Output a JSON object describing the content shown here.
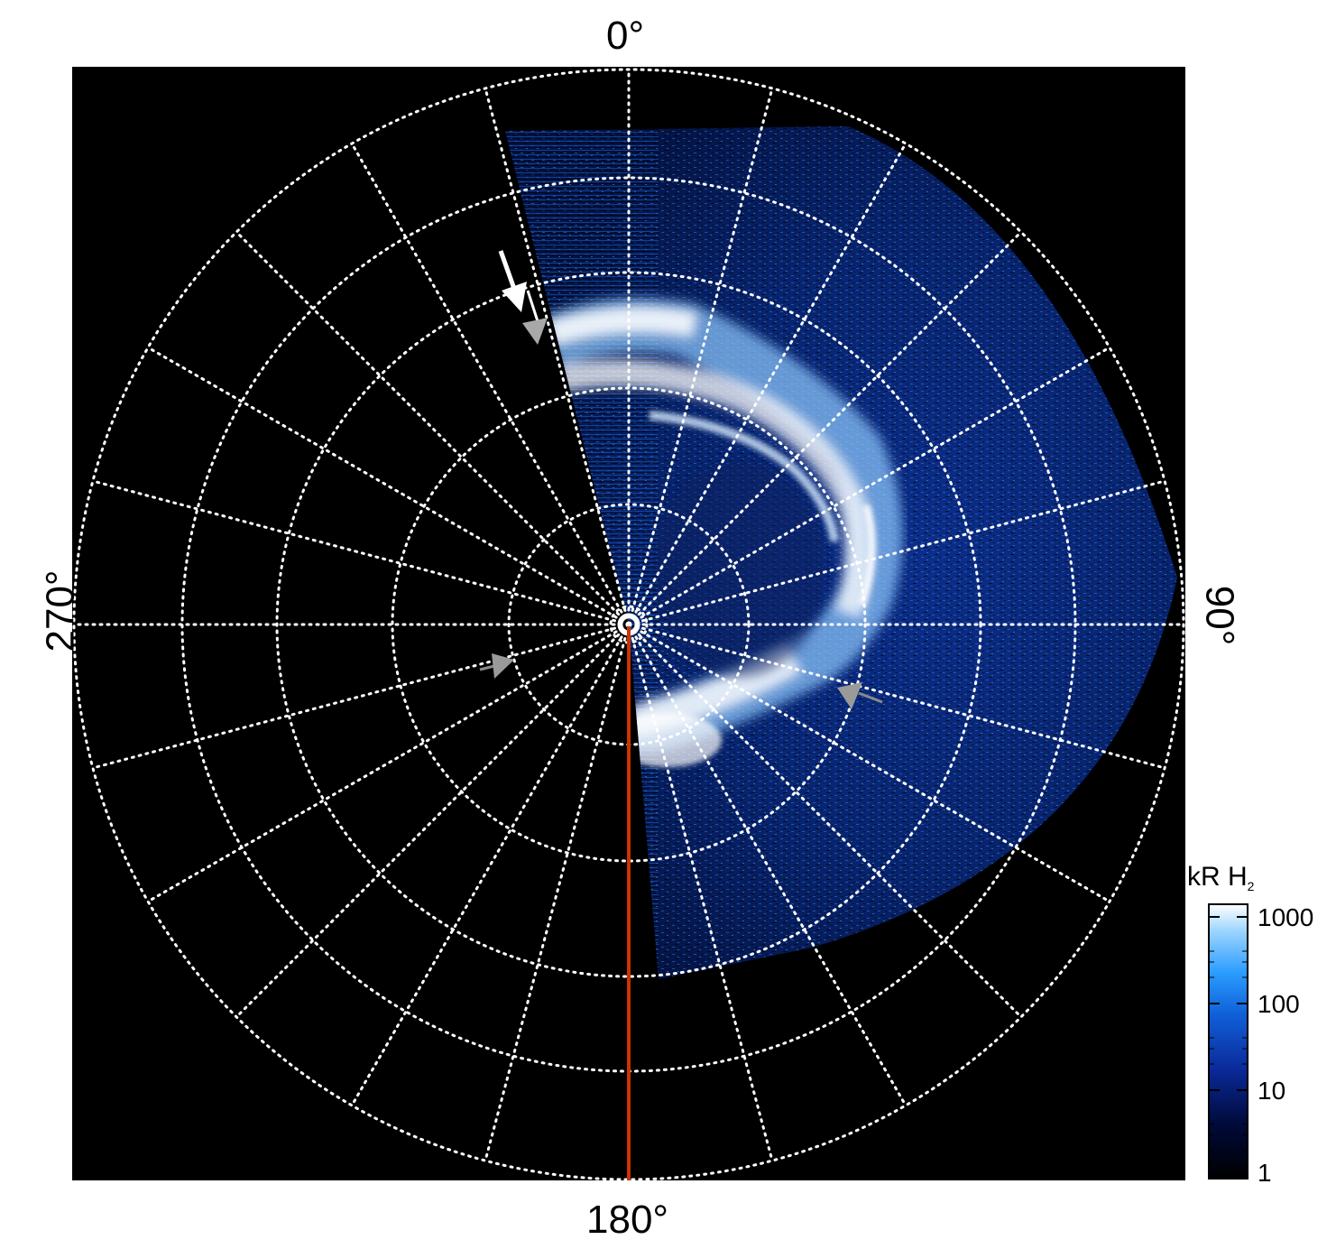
{
  "angle_labels": {
    "top": "0°",
    "bottom": "180°",
    "left": "270°",
    "right": "90°"
  },
  "colorbar": {
    "title": "kR H",
    "title_subscript": "2",
    "ticks": [
      "1000",
      "100",
      "10",
      "1"
    ]
  },
  "colors": {
    "background": "#000000",
    "grid": "#ffffff",
    "central_meridian": "#cc3300",
    "arrow_white": "#ffffff",
    "arrow_gray": "#9a9a9a",
    "colormap": [
      "#000000",
      "#000a3a",
      "#0a2a9a",
      "#1060d8",
      "#2a9cff",
      "#9ad4ff",
      "#ffffff"
    ]
  },
  "arrows": [
    {
      "color": "white",
      "points_to": "dawn-arc-upper-left"
    },
    {
      "color": "gray",
      "points_to": "dawn-arc-upper-left"
    },
    {
      "color": "gray",
      "points_to": "left-polar-region"
    },
    {
      "color": "gray",
      "points_to": "lower-main-oval"
    }
  ]
}
